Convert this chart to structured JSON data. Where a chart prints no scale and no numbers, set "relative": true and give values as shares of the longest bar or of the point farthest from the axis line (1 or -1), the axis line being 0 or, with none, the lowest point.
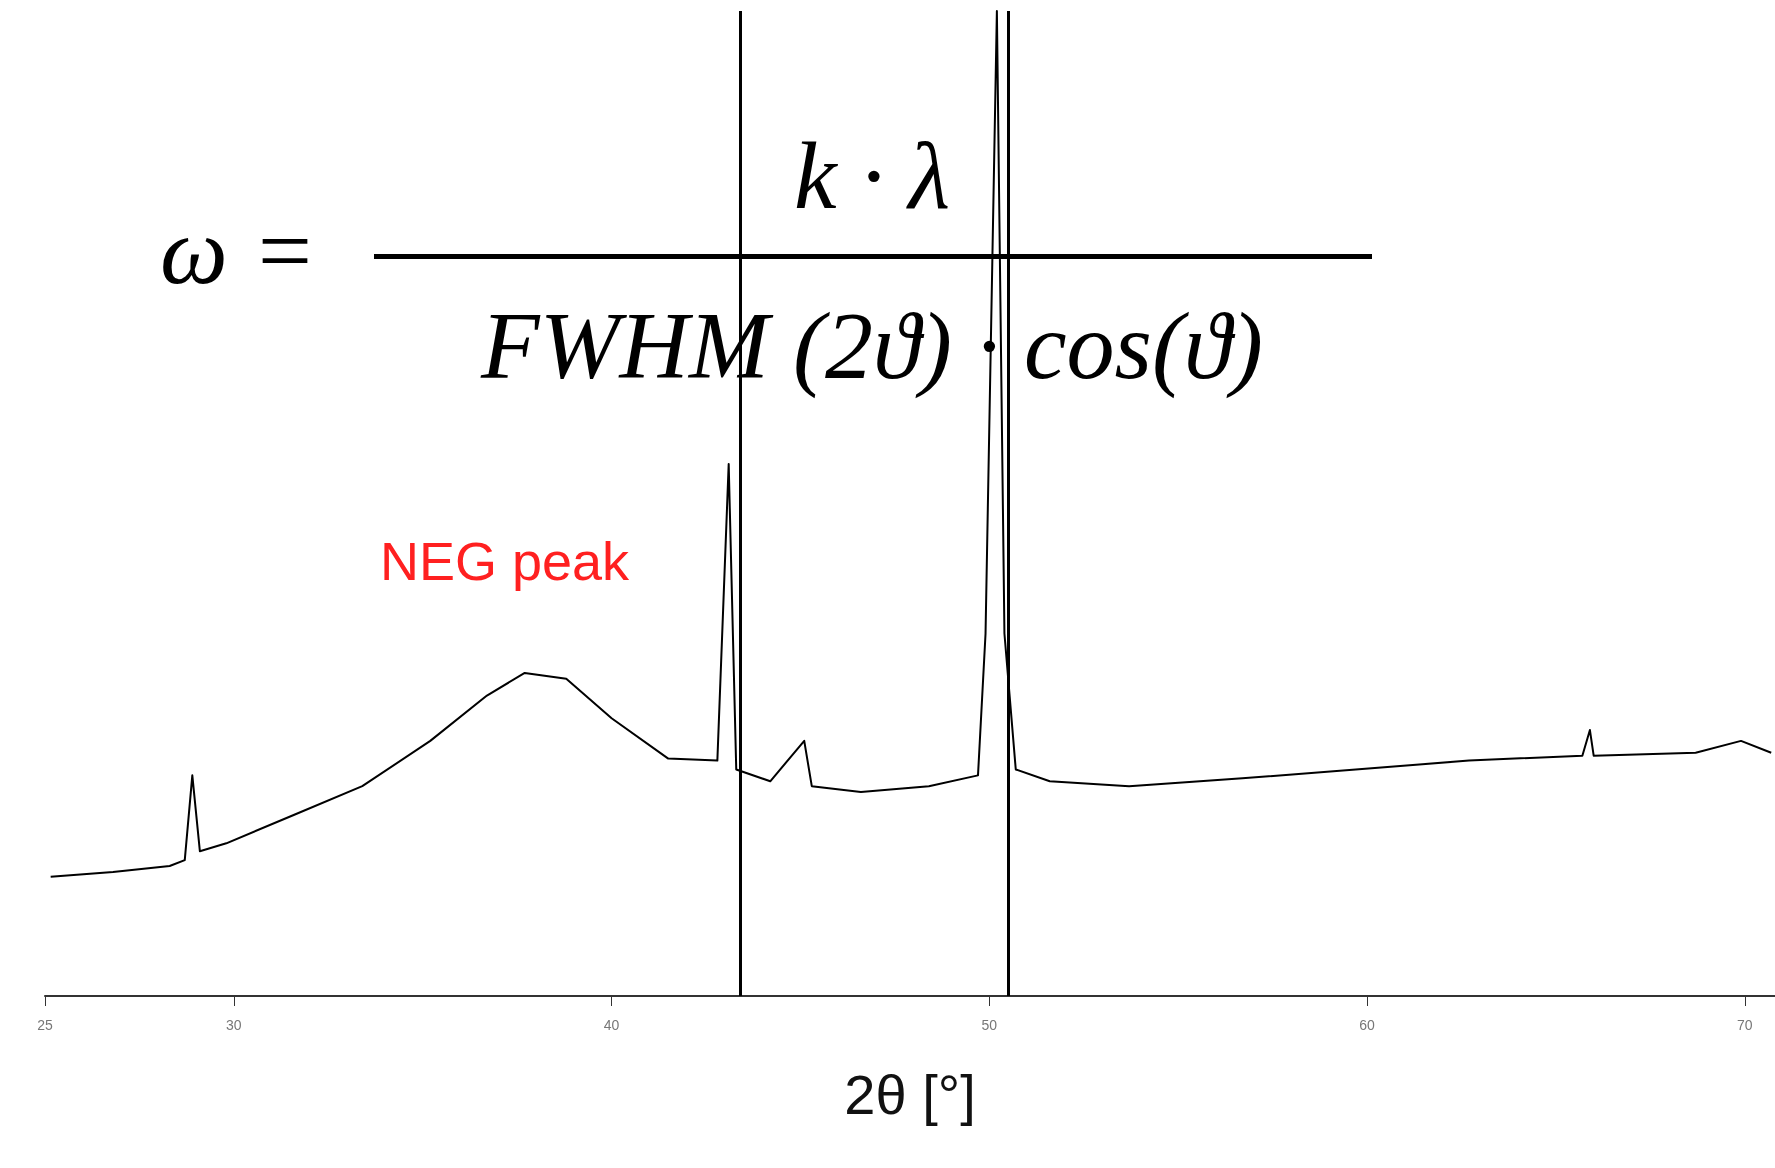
{
  "chart_data": {
    "type": "line",
    "relative": true,
    "xlabel": "2θ [°]",
    "xlim": [
      25,
      70.8
    ],
    "xticks": [
      25,
      30,
      40,
      50,
      60,
      70
    ],
    "grid": false,
    "marker": "none",
    "line_style": "solid",
    "annotations": [
      "ω =",
      "k · λ",
      "FWHM (2ϑ) · cos(ϑ)",
      "NEG peak"
    ],
    "ref_lines": [
      {
        "axis": "x",
        "value": 43.4,
        "color": "#000000"
      },
      {
        "axis": "x",
        "value": 50.5,
        "color": "#000000"
      }
    ],
    "series": [
      {
        "color": "#000000",
        "x": [
          25.15,
          26.8,
          28.3,
          28.7,
          28.9,
          29.1,
          29.8,
          31.6,
          33.4,
          35.2,
          36.7,
          37.7,
          38.8,
          40.0,
          41.5,
          42.8,
          43.1,
          43.3,
          44.2,
          45.1,
          45.3,
          46.6,
          48.4,
          49.7,
          49.9,
          50.2,
          50.4,
          50.7,
          51.6,
          53.7,
          56.7,
          59.7,
          62.7,
          65.7,
          65.9,
          66.0,
          68.7,
          69.9,
          70.7
        ],
        "values": [
          0.121,
          0.126,
          0.132,
          0.138,
          0.224,
          0.147,
          0.155,
          0.184,
          0.213,
          0.259,
          0.305,
          0.328,
          0.322,
          0.282,
          0.241,
          0.239,
          0.54,
          0.23,
          0.218,
          0.259,
          0.213,
          0.207,
          0.213,
          0.224,
          0.368,
          1,
          0.368,
          0.23,
          0.218,
          0.213,
          0.221,
          0.23,
          0.239,
          0.244,
          0.27,
          0.244,
          0.247,
          0.259,
          0.247
        ]
      }
    ]
  }
}
